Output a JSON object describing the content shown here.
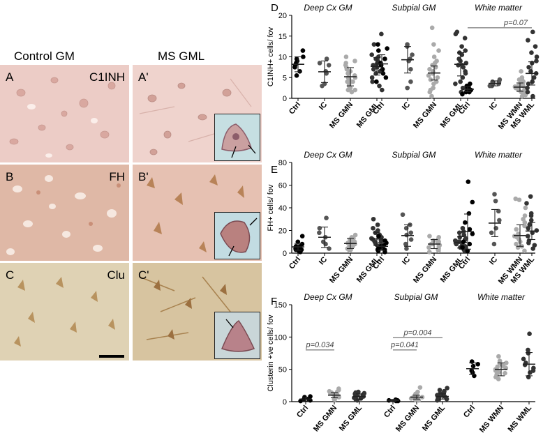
{
  "micro": {
    "col_control": "Control GM",
    "col_ms": "MS GML",
    "rows": [
      {
        "left": "A",
        "right": "A'",
        "stain": "C1INH"
      },
      {
        "left": "B",
        "right": "B'",
        "stain": "FH"
      },
      {
        "left": "C",
        "right": "C'",
        "stain": "Clu"
      }
    ],
    "colors": {
      "c1inh": "#ecc9c3",
      "fh": "#dfb7a4",
      "clu": "#d9cba8"
    }
  },
  "chart_data": [
    {
      "panel": "D",
      "type": "scatter",
      "ylabel": "C1INH+ cells/ fov",
      "ylim": [
        0,
        20
      ],
      "yticks": [
        0,
        5,
        10,
        15,
        20
      ],
      "groups": [
        "Deep Cx GM",
        "Subpial GM",
        "White matter"
      ],
      "categories": [
        "Ctrl",
        "IC",
        "MS GMN",
        "MS GML",
        "Ctrl",
        "IC",
        "MS GMN",
        "MS GML",
        "Ctrl",
        "IC",
        "MS WMN",
        "MS WML"
      ],
      "colors": [
        "#000000",
        "#555555",
        "#aaaaaa",
        "#333333",
        "#000000",
        "#555555",
        "#aaaaaa",
        "#333333",
        "#000000",
        "#555555",
        "#aaaaaa",
        "#333333"
      ],
      "means": [
        8.2,
        6.4,
        5.2,
        7.7,
        8.3,
        9.3,
        6.1,
        8.2,
        2.2,
        3.6,
        2.7,
        6.0
      ],
      "sds": [
        1.8,
        2.6,
        2.2,
        2.1,
        2.2,
        3.2,
        1.7,
        2.8,
        0.6,
        0.6,
        1.0,
        2.8
      ],
      "points": [
        [
          8.5,
          7.5,
          11.5,
          9.5,
          6.5,
          8.0,
          10.0,
          9.0,
          5.5
        ],
        [
          6.5,
          8.5,
          3.5,
          8.0,
          3.0,
          9.5,
          6.0
        ],
        [
          5.5,
          2.0,
          8.0,
          4.5,
          9.0,
          7.5,
          3.0,
          6.5,
          1.5,
          4.0,
          10.0,
          5.0,
          3.5,
          7.0,
          2.5,
          6.0,
          8.5,
          4.0,
          5.0,
          2.0
        ],
        [
          8.0,
          6.5,
          10.0,
          15.5,
          7.5,
          9.0,
          5.0,
          8.5,
          13.0,
          4.0,
          7.0,
          10.5,
          6.0,
          2.0,
          8.0,
          9.5,
          7.0,
          3.0
        ],
        [
          8.0,
          6.0,
          11.5,
          8.5,
          13.0,
          4.0,
          9.5,
          7.0,
          5.0,
          12.0
        ],
        [
          9.5,
          13.0,
          4.0,
          10.5,
          7.0,
          12.5,
          2.5,
          9.0
        ],
        [
          5.5,
          17.0,
          8.0,
          2.5,
          6.5,
          11.5,
          4.5,
          7.5,
          1.5,
          9.0,
          3.5,
          6.0,
          13.0,
          0.5,
          7.0,
          5.0,
          10.0,
          4.0,
          2.0,
          8.5
        ],
        [
          8.0,
          16.0,
          6.5,
          11.5,
          3.5,
          9.5,
          14.5,
          5.0,
          7.5,
          12.5,
          1.5,
          9.0,
          4.0,
          15.5,
          8.5,
          6.0,
          10.5,
          2.5,
          11.0,
          8.0
        ],
        [
          2.0,
          1.0,
          2.5,
          3.0,
          1.5,
          2.0,
          2.5,
          3.5,
          1.5,
          2.0
        ],
        [
          3.5,
          4.0,
          3.0,
          4.5,
          3.5,
          3.0,
          4.0
        ],
        [
          2.5,
          3.5,
          1.5,
          4.5,
          2.0,
          5.0,
          0.8,
          3.0,
          6.5,
          2.5,
          4.0,
          1.0,
          3.5,
          2.0,
          0.5,
          3.0,
          1.5,
          4.5,
          2.8
        ],
        [
          6.5,
          16.0,
          3.5,
          10.0,
          8.5,
          1.5,
          5.0,
          12.5,
          7.5,
          2.5,
          6.0,
          9.0,
          4.0,
          14.0,
          0.5,
          11.0
        ]
      ],
      "annotations": [
        {
          "text": "p=0.07",
          "from": 8,
          "to": 11
        }
      ]
    },
    {
      "panel": "E",
      "type": "scatter",
      "ylabel": "FH+ cells/ fov",
      "ylim": [
        0,
        80
      ],
      "yticks": [
        0,
        20,
        40,
        60,
        80
      ],
      "groups": [
        "Deep Cx GM",
        "Subpial GM",
        "White matter"
      ],
      "categories": [
        "Ctrl",
        "IC",
        "MS GMN",
        "MS GML",
        "Ctrl",
        "IC",
        "MS GMN",
        "MS GML",
        "Ctrl",
        "IC",
        "MS WMN",
        "MS WML"
      ],
      "colors": [
        "#000000",
        "#555555",
        "#aaaaaa",
        "#333333",
        "#000000",
        "#555555",
        "#aaaaaa",
        "#333333",
        "#000000",
        "#555555",
        "#aaaaaa",
        "#333333"
      ],
      "means": [
        5.5,
        14.0,
        8.5,
        12.5,
        6.0,
        15.5,
        8.0,
        9.5,
        19.0,
        26.5,
        15.5,
        19.5
      ],
      "sds": [
        3.0,
        9.0,
        4.5,
        5.5,
        3.5,
        9.5,
        4.0,
        5.0,
        15.5,
        12.0,
        9.5,
        7.5
      ],
      "points": [
        [
          6,
          3,
          10,
          15,
          4,
          2,
          8,
          5,
          1,
          6,
          3
        ],
        [
          8,
          31,
          22,
          10,
          4,
          18,
          14
        ],
        [
          10,
          5,
          14,
          8,
          3,
          12,
          9,
          6,
          16,
          2,
          11,
          7,
          13,
          4,
          8,
          10,
          6
        ],
        [
          12,
          18,
          30,
          8,
          22,
          14,
          5,
          16,
          25,
          10,
          3,
          20,
          7,
          13,
          9,
          11
        ],
        [
          6,
          15,
          3,
          9,
          1,
          5,
          7,
          11,
          2,
          4
        ],
        [
          25,
          34,
          8,
          16,
          4,
          18,
          22,
          12
        ],
        [
          7,
          14,
          2,
          10,
          5,
          8,
          15,
          3,
          11,
          6,
          9,
          4,
          12,
          8,
          1
        ],
        [
          10,
          19,
          5,
          14,
          7,
          22,
          3,
          12,
          9,
          16,
          6,
          11,
          2,
          8,
          13,
          18,
          4,
          10
        ],
        [
          63,
          35,
          5,
          17,
          27,
          10,
          2,
          45,
          21,
          8
        ],
        [
          37,
          52,
          22,
          8,
          29,
          46,
          18
        ],
        [
          48,
          5,
          21,
          33,
          10,
          15,
          2,
          40,
          27,
          12,
          8,
          17,
          24,
          47,
          6,
          30,
          14
        ],
        [
          50,
          22,
          7,
          33,
          15,
          29,
          4,
          44,
          18,
          25,
          11,
          35,
          20,
          9
        ]
      ],
      "annotations": []
    },
    {
      "panel": "F",
      "type": "scatter",
      "ylabel": "Clusterin +ve cells/ fov",
      "ylim": [
        0,
        150
      ],
      "yticks": [
        0,
        50,
        100,
        150
      ],
      "groups": [
        "Deep Cx GM",
        "Subpial GM",
        "White matter"
      ],
      "categories": [
        "Ctrl",
        "MS GMN",
        "MS GML",
        "Ctrl",
        "MS GMN",
        "MS GML",
        "Ctrl",
        "MS WMN",
        "MS WML"
      ],
      "colors": [
        "#000000",
        "#aaaaaa",
        "#333333",
        "#000000",
        "#aaaaaa",
        "#333333",
        "#000000",
        "#aaaaaa",
        "#333333"
      ],
      "means": [
        4,
        10,
        8,
        2,
        7,
        8,
        51,
        50,
        58
      ],
      "sds": [
        3,
        4,
        4,
        1.5,
        3,
        4,
        9,
        10,
        18
      ],
      "points": [
        [
          3,
          7,
          1,
          5,
          2,
          8,
          4
        ],
        [
          10,
          14,
          6,
          18,
          9,
          12,
          4,
          20,
          8,
          11,
          15,
          7,
          13,
          3,
          10,
          16
        ],
        [
          8,
          12,
          4,
          15,
          7,
          10,
          3,
          13,
          9,
          5,
          11,
          6,
          14,
          2
        ],
        [
          2,
          1,
          3,
          2,
          1
        ],
        [
          6,
          22,
          9,
          4,
          12,
          2,
          15,
          7,
          10,
          3,
          5,
          8
        ],
        [
          8,
          16,
          4,
          21,
          10,
          6,
          13,
          2,
          9,
          18,
          5,
          11,
          7,
          14,
          3
        ],
        [
          58,
          45,
          62,
          48,
          40,
          55
        ],
        [
          45,
          60,
          38,
          52,
          70,
          48,
          55,
          42,
          63,
          50,
          35,
          57,
          46,
          54,
          60,
          44
        ],
        [
          105,
          60,
          45,
          75,
          52,
          38,
          80,
          57,
          66,
          48
        ]
      ],
      "annotations": [
        {
          "text": "p=0.034",
          "from": 0,
          "to": 1
        },
        {
          "text": "p=0.041",
          "from": 3,
          "to": 4
        },
        {
          "text": "p=0.004",
          "from": 3,
          "to": 5
        }
      ]
    }
  ]
}
